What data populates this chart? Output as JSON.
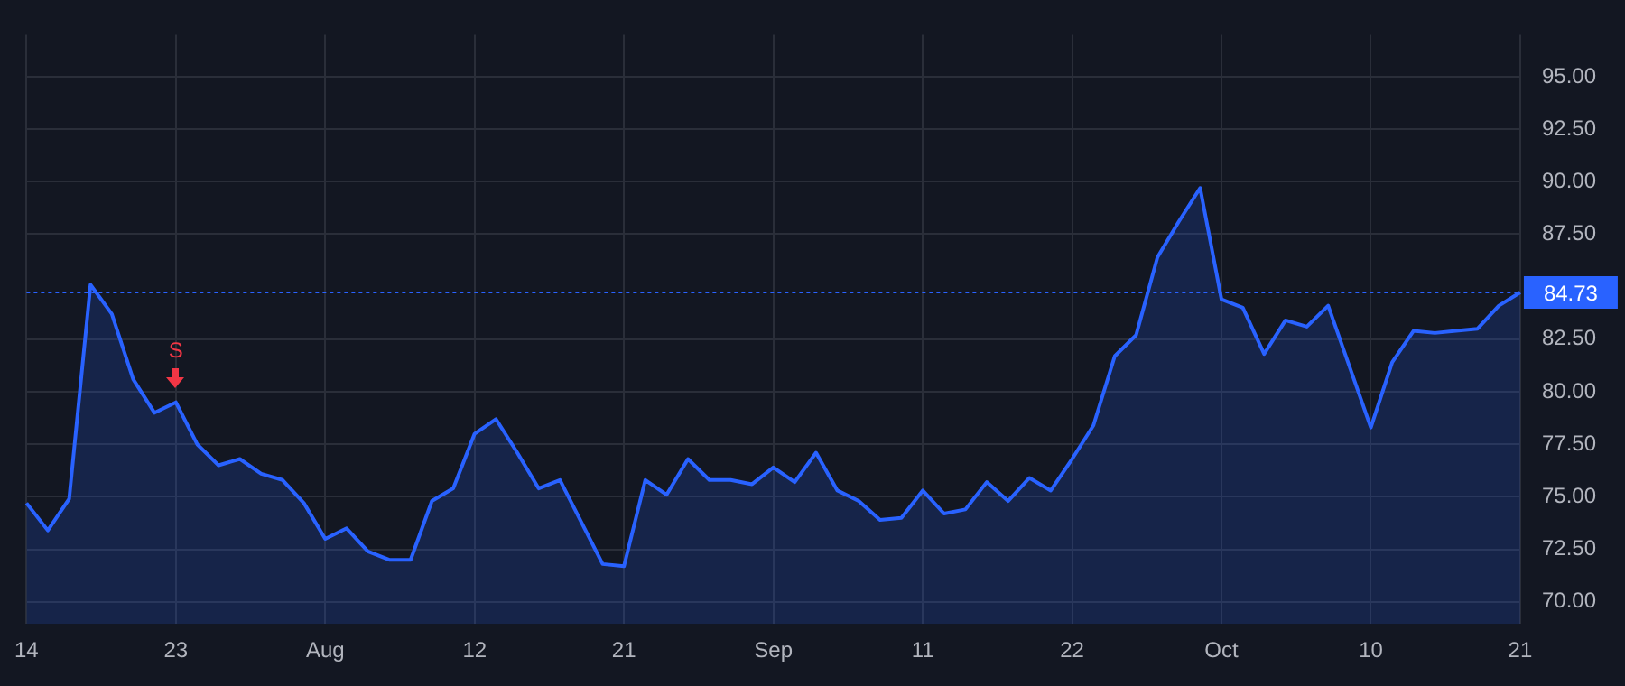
{
  "chart_data": {
    "type": "area",
    "categories": [
      "14",
      null,
      null,
      null,
      null,
      null,
      null,
      "23",
      null,
      null,
      null,
      null,
      null,
      null,
      "Aug",
      null,
      null,
      null,
      null,
      null,
      null,
      "12",
      null,
      null,
      null,
      null,
      null,
      null,
      "21",
      null,
      null,
      null,
      null,
      null,
      null,
      "Sep",
      null,
      null,
      null,
      null,
      null,
      null,
      "11",
      null,
      null,
      null,
      null,
      null,
      null,
      "22",
      null,
      null,
      null,
      null,
      null,
      null,
      "Oct",
      null,
      null,
      null,
      null,
      null,
      null,
      "10",
      null,
      null,
      null,
      null,
      null,
      null,
      "21"
    ],
    "series": [
      {
        "color": "#2962ff",
        "values": [
          74.7,
          73.4,
          74.9,
          85.1,
          83.7,
          80.6,
          79.0,
          79.5,
          77.5,
          76.5,
          76.8,
          76.1,
          75.8,
          74.7,
          73.0,
          73.5,
          72.4,
          72.0,
          72.0,
          74.8,
          75.4,
          78.0,
          78.7,
          77.1,
          75.4,
          75.8,
          73.8,
          71.8,
          71.7,
          75.8,
          75.1,
          76.8,
          75.8,
          75.8,
          75.6,
          76.4,
          75.7,
          77.1,
          75.3,
          74.8,
          73.9,
          74.0,
          75.3,
          74.2,
          74.4,
          75.7,
          74.8,
          75.9,
          75.3,
          76.8,
          78.4,
          81.7,
          82.7,
          86.4,
          88.1,
          89.7,
          84.4,
          84.0,
          81.8,
          83.4,
          83.1,
          84.1,
          81.2,
          78.3,
          81.4,
          82.9,
          82.8,
          82.9,
          83.0,
          84.1,
          84.73
        ]
      }
    ],
    "ylim": [
      68.95,
      97.0
    ],
    "yticks": [
      {
        "value": 70,
        "label": "70.00"
      },
      {
        "value": 72.5,
        "label": "72.50"
      },
      {
        "value": 75,
        "label": "75.00"
      },
      {
        "value": 77.5,
        "label": "77.50"
      },
      {
        "value": 80,
        "label": "80.00"
      },
      {
        "value": 82.5,
        "label": "82.50"
      },
      {
        "value": 87.5,
        "label": "87.50"
      },
      {
        "value": 90,
        "label": "90.00"
      },
      {
        "value": 92.5,
        "label": "92.50"
      },
      {
        "value": 95,
        "label": "95.00"
      }
    ],
    "ref_lines": [
      {
        "axis": "y",
        "value": 84.73,
        "label": "84.73",
        "color": "#2962ff",
        "line_style": "dotted"
      }
    ],
    "annotations": [
      {
        "text": "S",
        "x": "23",
        "y": 79.5
      }
    ],
    "grid": true,
    "legend": false,
    "marker": "none",
    "line_style": "solid"
  }
}
